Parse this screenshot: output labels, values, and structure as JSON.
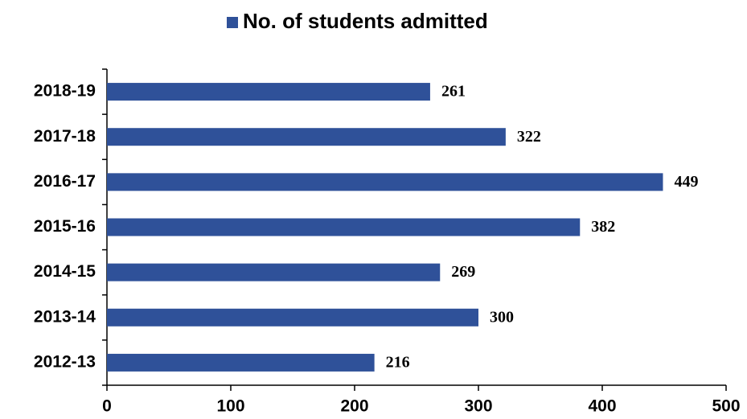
{
  "chart_data": {
    "type": "bar",
    "categories": [
      "2012-13",
      "2013-14",
      "2014-15",
      "2015-16",
      "2016-17",
      "2017-18",
      "2018-19"
    ],
    "series": [
      {
        "name": "No. of students admitted",
        "color": "#2f5199",
        "values": [
          216,
          300,
          269,
          382,
          449,
          322,
          261
        ]
      }
    ],
    "xlim": [
      0,
      500
    ],
    "xticks": [
      0,
      100,
      200,
      300,
      400,
      500
    ],
    "legend": "top",
    "grid": false
  }
}
